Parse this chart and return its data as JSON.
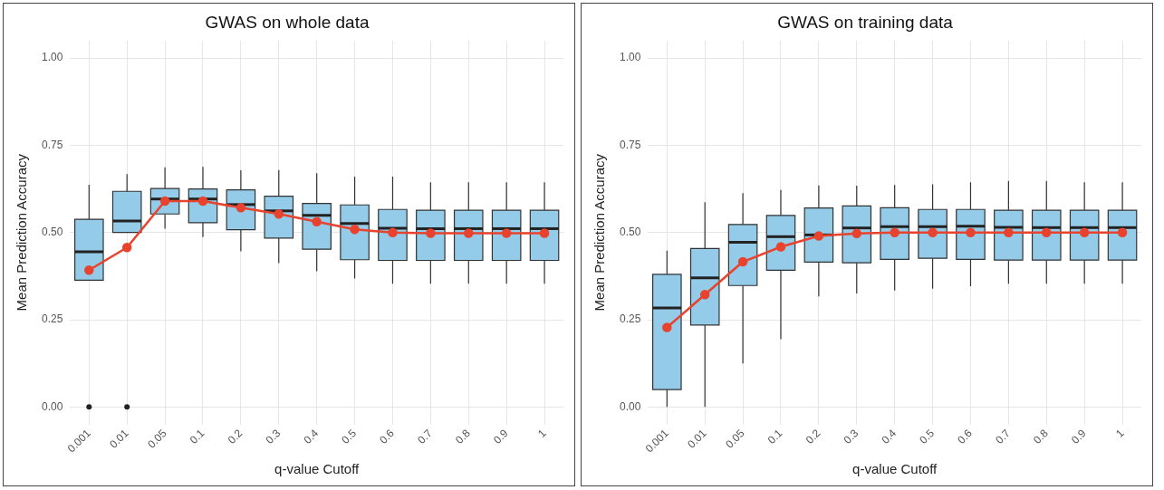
{
  "chart_data": [
    {
      "type": "box",
      "title": "GWAS on whole data",
      "xlabel": "q-value Cutoff",
      "ylabel": "Mean Prediction Accuracy",
      "categories": [
        "0.001",
        "0.01",
        "0.05",
        "0.1",
        "0.2",
        "0.3",
        "0.4",
        "0.5",
        "0.6",
        "0.7",
        "0.8",
        "0.9",
        "1"
      ],
      "ylim": [
        -0.05,
        1.05
      ],
      "yticks": [
        {
          "value": 0,
          "label": "0.00"
        },
        {
          "value": 0.25,
          "label": "0.25"
        },
        {
          "value": 0.5,
          "label": "0.50"
        },
        {
          "value": 0.75,
          "label": "0.75"
        },
        {
          "value": 1,
          "label": "1.00"
        }
      ],
      "grid": true,
      "legend": false,
      "marker": "circle",
      "series": [
        {
          "color": "#93cbe8",
          "boxes": [
            {
              "low": 0.363,
              "q1": 0.363,
              "median": 0.445,
              "q3": 0.538,
              "high": 0.637,
              "outliers": [
                0
              ]
            },
            {
              "low": 0.5,
              "q1": 0.5,
              "median": 0.533,
              "q3": 0.618,
              "high": 0.667,
              "outliers": [
                0
              ]
            },
            {
              "low": 0.511,
              "q1": 0.553,
              "median": 0.596,
              "q3": 0.626,
              "high": 0.687
            },
            {
              "low": 0.487,
              "q1": 0.528,
              "median": 0.596,
              "q3": 0.625,
              "high": 0.688
            },
            {
              "low": 0.446,
              "q1": 0.508,
              "median": 0.58,
              "q3": 0.622,
              "high": 0.678
            },
            {
              "low": 0.412,
              "q1": 0.484,
              "median": 0.562,
              "q3": 0.604,
              "high": 0.679
            },
            {
              "low": 0.389,
              "q1": 0.452,
              "median": 0.549,
              "q3": 0.583,
              "high": 0.67
            },
            {
              "low": 0.368,
              "q1": 0.422,
              "median": 0.526,
              "q3": 0.579,
              "high": 0.66
            },
            {
              "low": 0.353,
              "q1": 0.42,
              "median": 0.512,
              "q3": 0.566,
              "high": 0.66
            },
            {
              "low": 0.353,
              "q1": 0.42,
              "median": 0.511,
              "q3": 0.564,
              "high": 0.644
            },
            {
              "low": 0.353,
              "q1": 0.42,
              "median": 0.511,
              "q3": 0.564,
              "high": 0.644
            },
            {
              "low": 0.353,
              "q1": 0.42,
              "median": 0.511,
              "q3": 0.564,
              "high": 0.644
            },
            {
              "low": 0.353,
              "q1": 0.42,
              "median": 0.511,
              "q3": 0.564,
              "high": 0.644
            }
          ]
        },
        {
          "type": "line",
          "color": "#e8432e",
          "values": [
            0.392,
            0.457,
            0.59,
            0.59,
            0.571,
            0.553,
            0.531,
            0.509,
            0.5,
            0.498,
            0.498,
            0.498,
            0.498
          ]
        }
      ]
    },
    {
      "type": "box",
      "title": "GWAS on training data",
      "xlabel": "q-value Cutoff",
      "ylabel": "Mean Prediction Accuracy",
      "categories": [
        "0.001",
        "0.01",
        "0.05",
        "0.1",
        "0.2",
        "0.3",
        "0.4",
        "0.5",
        "0.6",
        "0.7",
        "0.8",
        "0.9",
        "1"
      ],
      "ylim": [
        -0.05,
        1.05
      ],
      "yticks": [
        {
          "value": 0,
          "label": "0.00"
        },
        {
          "value": 0.25,
          "label": "0.25"
        },
        {
          "value": 0.5,
          "label": "0.50"
        },
        {
          "value": 0.75,
          "label": "0.75"
        },
        {
          "value": 1,
          "label": "1.00"
        }
      ],
      "grid": true,
      "legend": false,
      "marker": "circle",
      "series": [
        {
          "color": "#93cbe8",
          "boxes": [
            {
              "low": 0,
              "q1": 0.05,
              "median": 0.284,
              "q3": 0.38,
              "high": 0.448
            },
            {
              "low": 0,
              "q1": 0.235,
              "median": 0.37,
              "q3": 0.454,
              "high": 0.587
            },
            {
              "low": 0.125,
              "q1": 0.348,
              "median": 0.472,
              "q3": 0.523,
              "high": 0.613
            },
            {
              "low": 0.194,
              "q1": 0.392,
              "median": 0.488,
              "q3": 0.549,
              "high": 0.622
            },
            {
              "low": 0.317,
              "q1": 0.415,
              "median": 0.493,
              "q3": 0.57,
              "high": 0.635
            },
            {
              "low": 0.325,
              "q1": 0.413,
              "median": 0.513,
              "q3": 0.576,
              "high": 0.634
            },
            {
              "low": 0.334,
              "q1": 0.423,
              "median": 0.517,
              "q3": 0.571,
              "high": 0.636
            },
            {
              "low": 0.339,
              "q1": 0.426,
              "median": 0.517,
              "q3": 0.566,
              "high": 0.638
            },
            {
              "low": 0.346,
              "q1": 0.423,
              "median": 0.518,
              "q3": 0.566,
              "high": 0.644
            },
            {
              "low": 0.353,
              "q1": 0.421,
              "median": 0.515,
              "q3": 0.564,
              "high": 0.648
            },
            {
              "low": 0.353,
              "q1": 0.421,
              "median": 0.514,
              "q3": 0.564,
              "high": 0.648
            },
            {
              "low": 0.353,
              "q1": 0.421,
              "median": 0.514,
              "q3": 0.564,
              "high": 0.644
            },
            {
              "low": 0.353,
              "q1": 0.421,
              "median": 0.514,
              "q3": 0.564,
              "high": 0.644
            }
          ]
        },
        {
          "type": "line",
          "color": "#e8432e",
          "values": [
            0.228,
            0.322,
            0.416,
            0.459,
            0.49,
            0.497,
            0.5,
            0.5,
            0.5,
            0.5,
            0.5,
            0.5,
            0.5
          ]
        }
      ]
    }
  ]
}
